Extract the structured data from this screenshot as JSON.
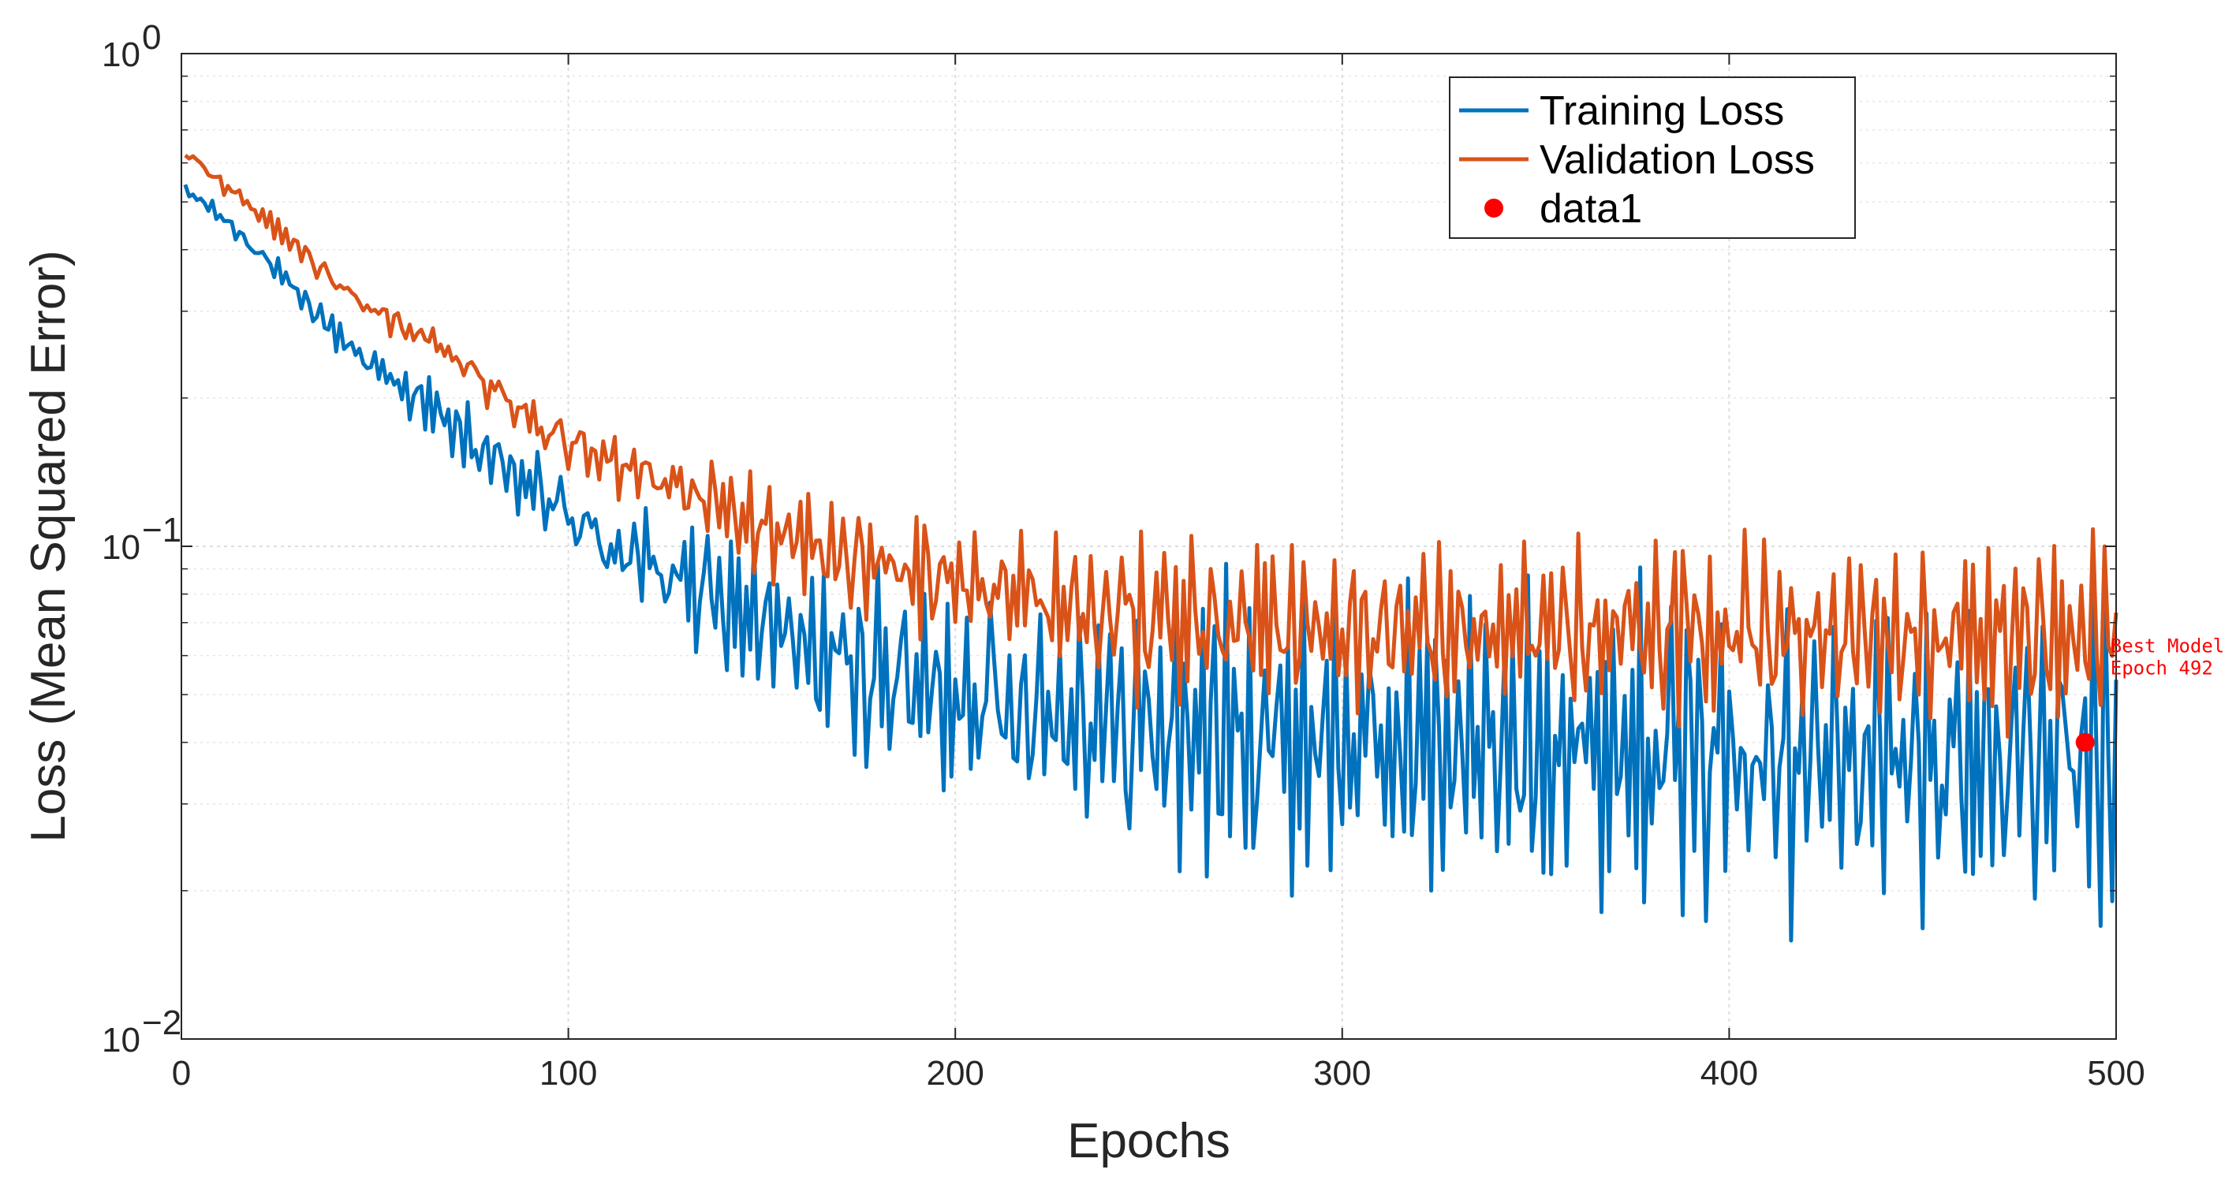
{
  "chart_data": {
    "type": "line",
    "title": "",
    "xlabel": "Epochs",
    "ylabel": "Loss (Mean Squared Error)",
    "xlim": [
      0,
      500
    ],
    "ylim": [
      0.01,
      1
    ],
    "yscale": "log",
    "grid": true,
    "x_ticks": [
      {
        "value": 0,
        "label": "0"
      },
      {
        "value": 100,
        "label": "100"
      },
      {
        "value": 200,
        "label": "200"
      },
      {
        "value": 300,
        "label": "300"
      },
      {
        "value": 400,
        "label": "400"
      },
      {
        "value": 500,
        "label": "500"
      }
    ],
    "y_ticks": [
      {
        "value": 0.01,
        "base": "10",
        "exp": "−2"
      },
      {
        "value": 0.1,
        "base": "10",
        "exp": "−1"
      },
      {
        "value": 1,
        "base": "10",
        "exp": "0"
      }
    ],
    "legend_position": "top-right",
    "series": [
      {
        "name": "Training Loss",
        "color": "#0072BD",
        "description": "Decays from ~0.53 at epoch 1 toward a noisy floor of ~0.02–0.05 after epoch ~250",
        "anchors": [
          [
            1,
            0.53
          ],
          [
            10,
            0.47
          ],
          [
            25,
            0.36
          ],
          [
            40,
            0.27
          ],
          [
            50,
            0.23
          ],
          [
            65,
            0.19
          ],
          [
            80,
            0.15
          ],
          [
            95,
            0.125
          ],
          [
            110,
            0.1
          ],
          [
            130,
            0.085
          ],
          [
            150,
            0.07
          ],
          [
            170,
            0.058
          ],
          [
            200,
            0.05
          ],
          [
            230,
            0.045
          ],
          [
            260,
            0.042
          ],
          [
            300,
            0.04
          ],
          [
            350,
            0.039
          ],
          [
            400,
            0.038
          ],
          [
            450,
            0.037
          ],
          [
            500,
            0.037
          ]
        ],
        "noise_log_amplitude": [
          [
            1,
            0.02
          ],
          [
            50,
            0.05
          ],
          [
            100,
            0.12
          ],
          [
            150,
            0.22
          ],
          [
            200,
            0.3
          ],
          [
            250,
            0.38
          ],
          [
            500,
            0.42
          ]
        ]
      },
      {
        "name": "Validation Loss",
        "color": "#D95319",
        "description": "Decays from ~0.63 at epoch 1 toward a noisy plateau of ~0.05–0.09 after epoch ~250",
        "anchors": [
          [
            1,
            0.63
          ],
          [
            10,
            0.55
          ],
          [
            25,
            0.44
          ],
          [
            40,
            0.34
          ],
          [
            50,
            0.3
          ],
          [
            65,
            0.26
          ],
          [
            80,
            0.21
          ],
          [
            95,
            0.17
          ],
          [
            110,
            0.15
          ],
          [
            130,
            0.13
          ],
          [
            150,
            0.11
          ],
          [
            170,
            0.095
          ],
          [
            200,
            0.085
          ],
          [
            230,
            0.075
          ],
          [
            260,
            0.07
          ],
          [
            300,
            0.068
          ],
          [
            350,
            0.068
          ],
          [
            400,
            0.067
          ],
          [
            450,
            0.066
          ],
          [
            500,
            0.066
          ]
        ],
        "noise_log_amplitude": [
          [
            1,
            0.02
          ],
          [
            50,
            0.04
          ],
          [
            100,
            0.08
          ],
          [
            150,
            0.12
          ],
          [
            200,
            0.16
          ],
          [
            250,
            0.2
          ],
          [
            500,
            0.24
          ]
        ]
      }
    ],
    "marker": {
      "name": "data1",
      "color": "#FF0000",
      "x": 492,
      "y": 0.04
    },
    "annotation": {
      "lines": [
        "Best Model",
        "Epoch 492"
      ],
      "color": "#FF0000",
      "x": 492,
      "y": 0.04
    }
  }
}
